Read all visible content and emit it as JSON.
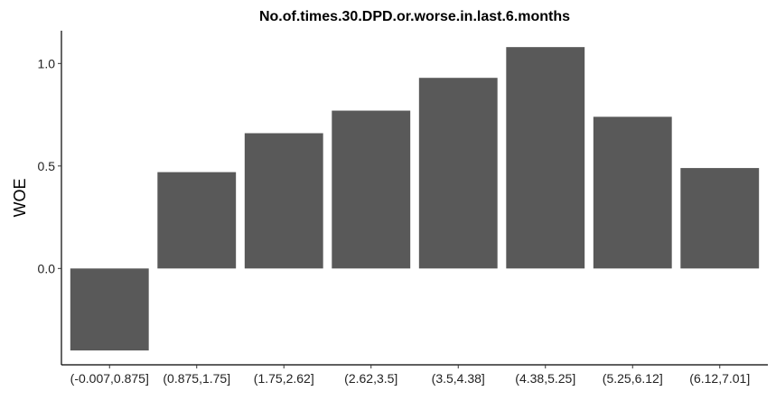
{
  "chart_data": {
    "type": "bar",
    "title": "No.of.times.30.DPD.or.worse.in.last.6.months",
    "xlabel": "",
    "ylabel": "WOE",
    "categories": [
      "(-0.007,0.875]",
      "(0.875,1.75]",
      "(1.75,2.62]",
      "(2.62,3.5]",
      "(3.5,4.38]",
      "(4.38,5.25]",
      "(5.25,6.12]",
      "(6.12,7.01]"
    ],
    "values": [
      -0.4,
      0.47,
      0.66,
      0.77,
      0.93,
      1.08,
      0.74,
      0.49
    ],
    "yticks": [
      0.0,
      0.5,
      1.0
    ],
    "ytick_labels": [
      "0.0",
      "0.5",
      "1.0"
    ],
    "ylim": [
      -0.47,
      1.16
    ],
    "grid": false,
    "bar_color": "#595959"
  }
}
